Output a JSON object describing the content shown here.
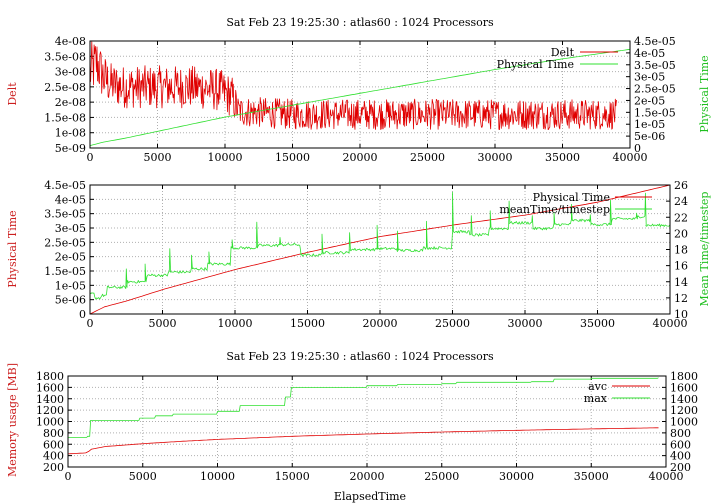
{
  "colors": {
    "red": "#e00000",
    "green": "#30e030",
    "grid": "#b0b0b0"
  },
  "chart_data": [
    {
      "type": "line",
      "title": "Sat Feb 23 19:25:30 : atlas60 :  1024 Processors",
      "xlabel": "",
      "ylabel": "Delt",
      "y2label": "Physical Time",
      "xlim": [
        0,
        40000
      ],
      "ylim": [
        5e-09,
        4e-08
      ],
      "y2lim": [
        0,
        4.5e-05
      ],
      "xticks": [
        "0",
        "5000",
        "10000",
        "15000",
        "20000",
        "25000",
        "30000",
        "35000",
        "40000"
      ],
      "yticks": [
        "5e-09",
        "1e-08",
        "1.5e-08",
        "2e-08",
        "2.5e-08",
        "3e-08",
        "3.5e-08",
        "4e-08"
      ],
      "y2ticks": [
        "0",
        "5e-06",
        "1e-05",
        "1.5e-05",
        "2e-05",
        "2.5e-05",
        "3e-05",
        "3.5e-05",
        "4e-05",
        "4.5e-05"
      ],
      "grid": true,
      "legend": "top-right",
      "series": [
        {
          "name": "Delt",
          "axis": "left",
          "style": "noisy",
          "x": [
            0,
            500,
            1000,
            1500,
            2500,
            5000,
            7500,
            9500,
            10500,
            11000,
            15000,
            20000,
            25000,
            30000,
            35000,
            39000
          ],
          "y": [
            3e-08,
            3.3e-08,
            2.8e-08,
            2.6e-08,
            2.5e-08,
            2.5e-08,
            2.5e-08,
            2.4e-08,
            2.2e-08,
            1.7e-08,
            1.6e-08,
            1.6e-08,
            1.6e-08,
            1.6e-08,
            1.6e-08,
            1.6e-08
          ],
          "spread": [
            9e-09,
            9e-09,
            8e-09,
            7e-09,
            7e-09,
            7e-09,
            7e-09,
            7e-09,
            7e-09,
            5e-09,
            5e-09,
            5e-09,
            5e-09,
            5e-09,
            5e-09,
            5e-09
          ]
        },
        {
          "name": "Physical Time",
          "axis": "right",
          "x": [
            0,
            1000,
            2500,
            5000,
            7500,
            10000,
            15000,
            20000,
            25000,
            30000,
            35000,
            40000
          ],
          "y": [
            1e-06,
            2.5e-06,
            4e-06,
            7e-06,
            1e-05,
            1.3e-05,
            1.8e-05,
            2.3e-05,
            2.8e-05,
            3.3e-05,
            3.75e-05,
            4.15e-05
          ]
        }
      ]
    },
    {
      "type": "line",
      "title": "",
      "xlabel": "",
      "ylabel": "Physical Time",
      "y2label": "Mean Time/timestep",
      "xlim": [
        0,
        40000
      ],
      "ylim": [
        0,
        4.5e-05
      ],
      "y2lim": [
        10,
        26
      ],
      "xticks": [
        "0",
        "5000",
        "10000",
        "15000",
        "20000",
        "25000",
        "30000",
        "35000",
        "40000"
      ],
      "yticks": [
        "0",
        "5e-06",
        "1e-05",
        "1.5e-05",
        "2e-05",
        "2.5e-05",
        "3e-05",
        "3.5e-05",
        "4e-05",
        "4.5e-05"
      ],
      "y2ticks": [
        "10",
        "12",
        "14",
        "16",
        "18",
        "20",
        "22",
        "24",
        "26"
      ],
      "grid": true,
      "legend": "top-right",
      "series": [
        {
          "name": "Physical Time",
          "axis": "left",
          "x": [
            0,
            1000,
            2500,
            5000,
            7500,
            10000,
            15000,
            20000,
            25000,
            30000,
            35000,
            40000
          ],
          "y": [
            0,
            2.5e-06,
            4.5e-06,
            8.5e-06,
            1.2e-05,
            1.55e-05,
            2.15e-05,
            2.7e-05,
            3.1e-05,
            3.45e-05,
            3.9e-05,
            4.5e-05
          ]
        },
        {
          "name": "meanTime/timestep",
          "axis": "right",
          "style": "steps",
          "x": [
            0,
            300,
            800,
            1200,
            2600,
            3900,
            5400,
            7000,
            8100,
            9700,
            11600,
            13000,
            14500,
            16000,
            17900,
            19800,
            21200,
            23000,
            25000,
            26200,
            27500,
            28900,
            30500,
            32000,
            33200,
            34500,
            36000,
            37800,
            38300,
            40000
          ],
          "y": [
            12.5,
            12.0,
            12.3,
            13.3,
            14.0,
            14.8,
            15.2,
            15.6,
            16.2,
            18.2,
            18.5,
            18.6,
            17.3,
            17.6,
            18.0,
            18.1,
            17.9,
            18.2,
            20.2,
            19.8,
            20.6,
            21.3,
            20.6,
            21.1,
            21.6,
            21.1,
            21.8,
            22.1,
            21.0,
            21.0
          ],
          "spikes": [
            {
              "x": 2500,
              "y": 15.6
            },
            {
              "x": 3800,
              "y": 16.2
            },
            {
              "x": 5500,
              "y": 18.1
            },
            {
              "x": 7000,
              "y": 17.3
            },
            {
              "x": 8200,
              "y": 17.7
            },
            {
              "x": 9800,
              "y": 19.2
            },
            {
              "x": 11500,
              "y": 21.4
            },
            {
              "x": 13100,
              "y": 19.5
            },
            {
              "x": 14500,
              "y": 18.1
            },
            {
              "x": 16000,
              "y": 19.9
            },
            {
              "x": 17900,
              "y": 20.1
            },
            {
              "x": 19800,
              "y": 21.0
            },
            {
              "x": 21200,
              "y": 20.3
            },
            {
              "x": 23200,
              "y": 21.5
            },
            {
              "x": 25000,
              "y": 25.1
            },
            {
              "x": 26300,
              "y": 22.2
            },
            {
              "x": 27600,
              "y": 22.8
            },
            {
              "x": 28900,
              "y": 24.0
            },
            {
              "x": 30500,
              "y": 22.2
            },
            {
              "x": 32000,
              "y": 22.6
            },
            {
              "x": 33200,
              "y": 23.6
            },
            {
              "x": 34500,
              "y": 22.3
            },
            {
              "x": 35900,
              "y": 24.1
            },
            {
              "x": 37700,
              "y": 22.5
            },
            {
              "x": 38300,
              "y": 25.0
            }
          ]
        }
      ]
    },
    {
      "type": "line",
      "title": "Sat Feb 23 19:25:30 : atlas60 :  1024 Processors",
      "xlabel": "ElapsedTime",
      "ylabel": "Memory usage [MB]",
      "y2label": "",
      "xlim": [
        0,
        40000
      ],
      "ylim": [
        200,
        1800
      ],
      "y2lim": [
        200,
        1800
      ],
      "xticks": [
        "0",
        "5000",
        "10000",
        "15000",
        "20000",
        "25000",
        "30000",
        "35000",
        "40000"
      ],
      "yticks": [
        "200",
        "400",
        "600",
        "800",
        "1000",
        "1200",
        "1400",
        "1600",
        "1800"
      ],
      "y2ticks": [
        "200",
        "400",
        "600",
        "800",
        "1000",
        "1200",
        "1400",
        "1600",
        "1800"
      ],
      "grid": true,
      "legend": "top-right",
      "series": [
        {
          "name": "avc",
          "axis": "left",
          "x": [
            0,
            1300,
            1500,
            2500,
            5000,
            7500,
            10000,
            15000,
            20000,
            25000,
            30000,
            35000,
            39500
          ],
          "y": [
            430,
            450,
            510,
            560,
            610,
            650,
            685,
            740,
            780,
            815,
            845,
            870,
            890
          ]
        },
        {
          "name": "max",
          "axis": "left",
          "style": "steps",
          "x": [
            0,
            1300,
            1500,
            4800,
            5800,
            7000,
            10000,
            11500,
            14500,
            14900,
            20000,
            22000,
            25000,
            26000,
            31000,
            32500,
            35000,
            39500
          ],
          "y": [
            720,
            740,
            1020,
            1060,
            1100,
            1130,
            1180,
            1280,
            1430,
            1600,
            1630,
            1650,
            1665,
            1690,
            1700,
            1745,
            1760,
            1770
          ]
        }
      ]
    }
  ]
}
